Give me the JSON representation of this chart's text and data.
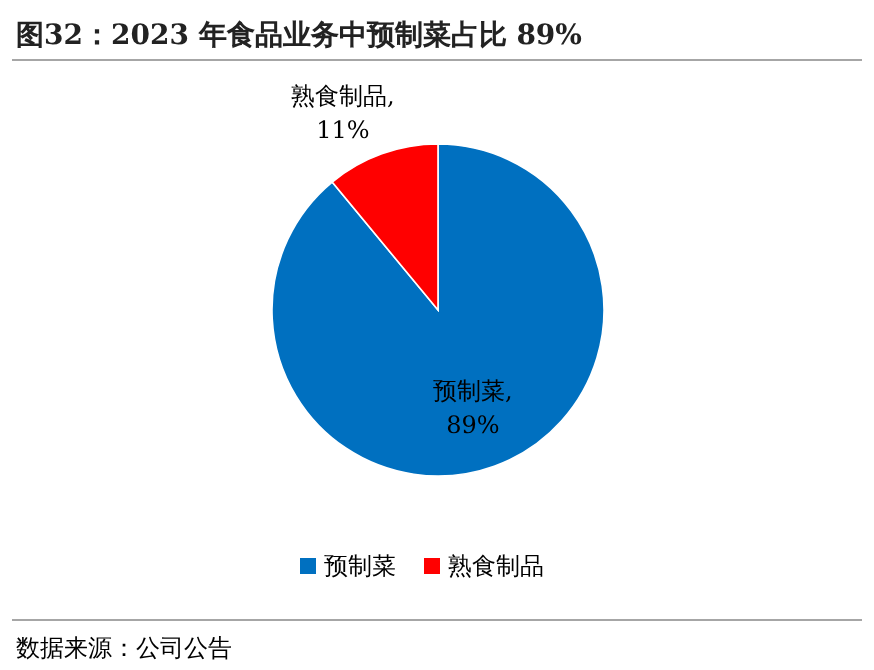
{
  "chart_data": {
    "type": "pie",
    "title": "图32：2023 年食品业务中预制菜占比 89%",
    "categories": [
      "预制菜",
      "熟食制品"
    ],
    "values": [
      89,
      11
    ],
    "colors": [
      "#0070c0",
      "#ff0000"
    ],
    "value_labels": [
      "预制菜,\n89%",
      "熟食制品,\n11%"
    ],
    "legend": "bottom",
    "annotations": [
      "数据来源：公司公告"
    ]
  }
}
